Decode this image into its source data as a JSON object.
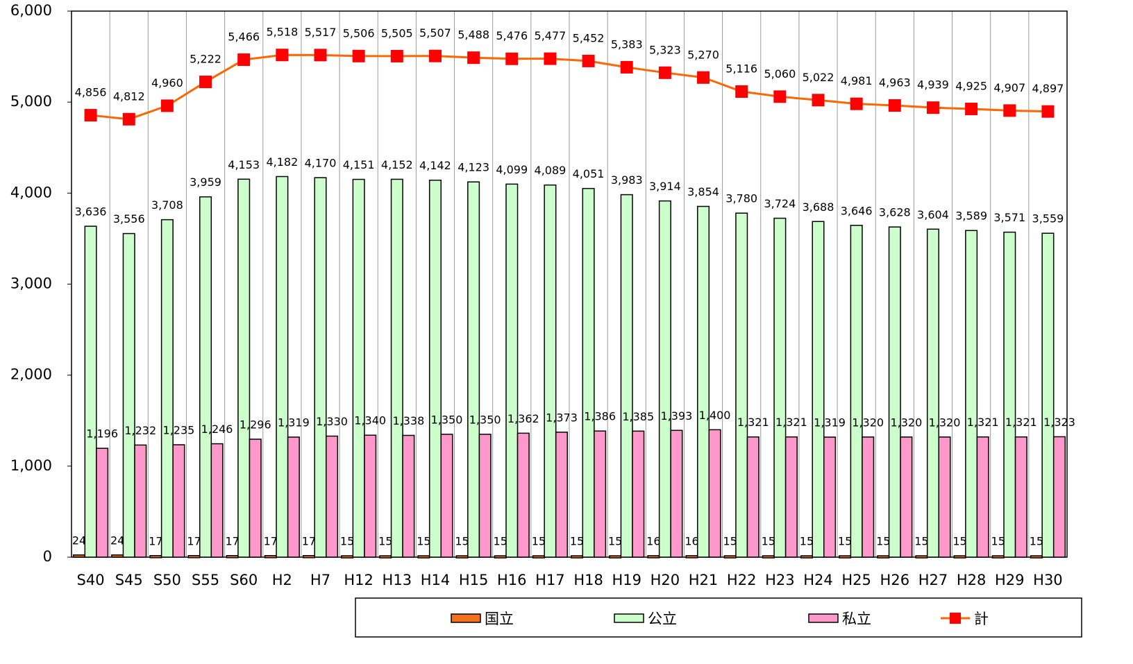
{
  "chart_data": {
    "type": "bar",
    "categories": [
      "S40",
      "S45",
      "S50",
      "S55",
      "S60",
      "H2",
      "H7",
      "H12",
      "H13",
      "H14",
      "H15",
      "H16",
      "H17",
      "H18",
      "H19",
      "H20",
      "H21",
      "H22",
      "H23",
      "H24",
      "H25",
      "H26",
      "H27",
      "H28",
      "H29",
      "H30"
    ],
    "series": [
      {
        "name": "国立",
        "color": "#f07020",
        "values": [
          24,
          24,
          17,
          17,
          17,
          17,
          17,
          15,
          15,
          15,
          15,
          15,
          15,
          15,
          15,
          16,
          16,
          15,
          15,
          15,
          15,
          15,
          15,
          15,
          15,
          15
        ]
      },
      {
        "name": "公立",
        "color": "#ccffcc",
        "values": [
          3636,
          3556,
          3708,
          3959,
          4153,
          4182,
          4170,
          4151,
          4152,
          4142,
          4123,
          4099,
          4089,
          4051,
          3983,
          3914,
          3854,
          3780,
          3724,
          3688,
          3646,
          3628,
          3604,
          3589,
          3571,
          3559
        ],
        "value_labels": [
          "3,636",
          "3,556",
          "3,708",
          "3,959",
          "4,153",
          "4,182",
          "4,170",
          "4,151",
          "4,152",
          "4,142",
          "4,123",
          "4,099",
          "4,089",
          "4,051",
          "3,983",
          "3,914",
          "3,854",
          "3,780",
          "3,724",
          "3,688",
          "3,646",
          "3,628",
          "3,604",
          "3,589",
          "3,571",
          "3,559"
        ]
      },
      {
        "name": "私立",
        "color": "#ff99cc",
        "values": [
          1196,
          1232,
          1235,
          1246,
          1296,
          1319,
          1330,
          1340,
          1338,
          1350,
          1350,
          1362,
          1373,
          1386,
          1385,
          1393,
          1400,
          1321,
          1321,
          1319,
          1320,
          1320,
          1320,
          1321,
          1321,
          1323
        ],
        "value_labels": [
          "1,196",
          "1,232",
          "1,235",
          "1,246",
          "1,296",
          "1,319",
          "1,330",
          "1,340",
          "1,338",
          "1,350",
          "1,350",
          "1,362",
          "1,373",
          "1,386",
          "1,385",
          "1,393",
          "1,400",
          "1,321",
          "1,321",
          "1,319",
          "1,320",
          "1,320",
          "1,320",
          "1,321",
          "1,321",
          "1,323"
        ]
      },
      {
        "name": "計",
        "type": "line",
        "color": "#ff6600",
        "marker_color": "#ff0000",
        "values": [
          4856,
          4812,
          4960,
          5222,
          5466,
          5518,
          5517,
          5506,
          5505,
          5507,
          5488,
          5476,
          5477,
          5452,
          5383,
          5323,
          5270,
          5116,
          5060,
          5022,
          4981,
          4963,
          4939,
          4925,
          4907,
          4897
        ],
        "value_labels": [
          "4,856",
          "4,812",
          "4,960",
          "5,222",
          "5,466",
          "5,518",
          "5,517",
          "5,506",
          "5,505",
          "5,507",
          "5,488",
          "5,476",
          "5,477",
          "5,452",
          "5,383",
          "5,323",
          "5,270",
          "5,116",
          "5,060",
          "5,022",
          "4,981",
          "4,963",
          "4,939",
          "4,925",
          "4,907",
          "4,897"
        ]
      }
    ],
    "ylim": [
      0,
      6000
    ],
    "yticks": [
      0,
      {
        "value": 1000,
        "label": "1,000"
      },
      {
        "value": 2000,
        "label": "2,000"
      },
      {
        "value": 3000,
        "label": "3,000"
      },
      {
        "value": 4000,
        "label": "4,000"
      },
      {
        "value": 5000,
        "label": "5,000"
      },
      {
        "value": 6000,
        "label": "6,000"
      }
    ],
    "grid": "x",
    "legend": "bottom-right"
  }
}
